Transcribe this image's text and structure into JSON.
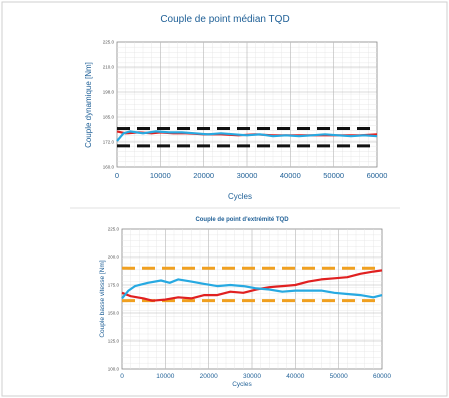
{
  "chart_data": [
    {
      "type": "line",
      "title": "Couple de point médian TQD",
      "xlabel": "Cycles",
      "ylabel": "Couple dynamique [Nm]",
      "xlim": [
        0,
        60000
      ],
      "ylim": [
        160,
        225
      ],
      "x_ticks": [
        "0",
        "10000",
        "20000",
        "30000",
        "40000",
        "50000",
        "60000"
      ],
      "y_ticks": [
        "160.0",
        "172.0",
        "185.0",
        "198.0",
        "210.0",
        "225.0"
      ],
      "grid": true,
      "limit_lines": [
        {
          "color": "#111111",
          "value": 180
        },
        {
          "color": "#111111",
          "value": 171
        }
      ],
      "series": [
        {
          "color": "#e02020",
          "x": [
            0,
            2000,
            5000,
            8000,
            10000,
            13000,
            16000,
            20000,
            24000,
            28000,
            32000,
            36000,
            40000,
            44000,
            48000,
            52000,
            56000,
            60000
          ],
          "y": [
            178.5,
            177.5,
            178,
            177.5,
            178,
            177.5,
            177.5,
            177,
            177,
            176.5,
            177,
            176.5,
            176.5,
            176.5,
            176.5,
            176.5,
            176.5,
            177
          ]
        },
        {
          "color": "#27a9e1",
          "x": [
            0,
            1500,
            3000,
            6000,
            9000,
            12000,
            15000,
            18000,
            21000,
            24000,
            27000,
            30000,
            33000,
            36000,
            39000,
            42000,
            45000,
            48000,
            51000,
            54000,
            57000,
            60000
          ],
          "y": [
            173.5,
            177.5,
            178.5,
            177.5,
            178.5,
            178,
            178,
            177.5,
            177,
            177.5,
            177,
            176.5,
            177,
            176,
            176.5,
            176,
            176.5,
            177,
            176.5,
            176,
            176.5,
            176
          ]
        }
      ]
    },
    {
      "type": "line",
      "title": "Couple de point d'extrémité TQD",
      "xlabel": "Cycles",
      "ylabel": "Couple basse vitesse [Nm]",
      "xlim": [
        0,
        60000
      ],
      "ylim": [
        100,
        225
      ],
      "x_ticks": [
        "0",
        "10000",
        "20000",
        "30000",
        "40000",
        "50000",
        "60000"
      ],
      "y_ticks": [
        "100.0",
        "125.0",
        "150.0",
        "175.0",
        "200.0",
        "225.0"
      ],
      "grid": true,
      "limit_lines": [
        {
          "color": "#f0a020",
          "value": 190
        },
        {
          "color": "#f0a020",
          "value": 161
        }
      ],
      "series": [
        {
          "color": "#e02020",
          "x": [
            0,
            2000,
            5000,
            7000,
            10000,
            13000,
            16000,
            19000,
            22000,
            25000,
            28000,
            31000,
            34000,
            37000,
            40000,
            43000,
            46000,
            49000,
            52000,
            55000,
            58000,
            60000
          ],
          "y": [
            168,
            165,
            163,
            161,
            162,
            164,
            163,
            166,
            166,
            169,
            168,
            171,
            173,
            174,
            175,
            178,
            180,
            181,
            182,
            185,
            187,
            188
          ]
        },
        {
          "color": "#27a9e1",
          "x": [
            0,
            1500,
            3000,
            6000,
            9000,
            11000,
            13000,
            16000,
            19000,
            22000,
            25000,
            28000,
            31000,
            34000,
            37000,
            40000,
            43000,
            46000,
            49000,
            52000,
            55000,
            58000,
            60000
          ],
          "y": [
            163,
            170,
            174,
            177,
            179,
            177,
            180,
            178,
            176,
            174,
            175,
            174,
            172,
            171,
            169,
            170,
            170,
            170,
            168,
            167,
            166,
            164,
            166
          ]
        }
      ]
    }
  ]
}
